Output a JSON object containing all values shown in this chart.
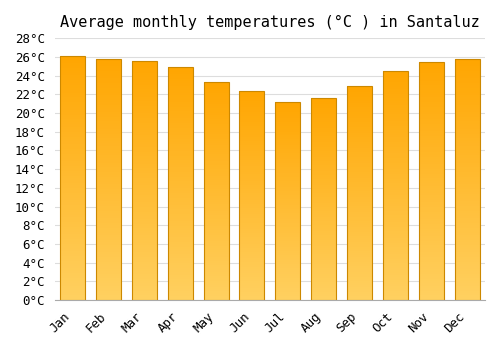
{
  "title": "Average monthly temperatures (°C ) in Santaluz",
  "months": [
    "Jan",
    "Feb",
    "Mar",
    "Apr",
    "May",
    "Jun",
    "Jul",
    "Aug",
    "Sep",
    "Oct",
    "Nov",
    "Dec"
  ],
  "values": [
    26.1,
    25.8,
    25.6,
    24.9,
    23.3,
    22.4,
    21.2,
    21.6,
    22.9,
    24.5,
    25.5,
    25.8
  ],
  "bar_color_top": "#FFA500",
  "bar_color_bottom": "#FFD060",
  "bar_edge_color": "#CC8800",
  "background_color": "#FFFFFF",
  "grid_color": "#DDDDDD",
  "ylim": [
    0,
    28
  ],
  "ytick_step": 2,
  "title_fontsize": 11,
  "tick_fontsize": 9,
  "font_family": "monospace"
}
